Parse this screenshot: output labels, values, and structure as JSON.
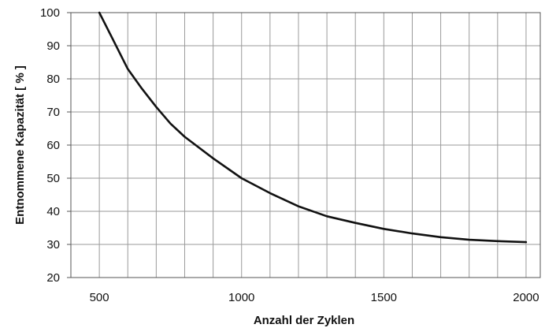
{
  "chart_data": {
    "type": "line",
    "title": "",
    "xlabel": "Anzahl der Zyklen",
    "ylabel": "Entnommene Kapazität [ % ]",
    "xlim": [
      400,
      2050
    ],
    "ylim": [
      20,
      100
    ],
    "x_ticks": [
      500,
      1000,
      1500,
      2000
    ],
    "x_tick_labels": [
      "500",
      "1000",
      "1500",
      "2000"
    ],
    "x_gridlines": [
      500,
      600,
      700,
      800,
      900,
      1000,
      1100,
      1200,
      1300,
      1400,
      1500,
      1600,
      1700,
      1800,
      1900,
      2000
    ],
    "y_ticks": [
      20,
      30,
      40,
      50,
      60,
      70,
      80,
      90,
      100
    ],
    "y_tick_labels": [
      "20",
      "30",
      "40",
      "50",
      "60",
      "70",
      "80",
      "90",
      "100"
    ],
    "grid": true,
    "legend": "none",
    "line_color": "#111111",
    "grid_color": "#9a9a9a",
    "series": [
      {
        "x": [
          500,
          550,
          600,
          650,
          700,
          750,
          800,
          900,
          1000,
          1100,
          1200,
          1300,
          1400,
          1500,
          1600,
          1700,
          1800,
          1900,
          2000
        ],
        "values": [
          100,
          91.5,
          83,
          77,
          71.5,
          66.5,
          62.5,
          56,
          50,
          45.5,
          41.5,
          38.5,
          36.5,
          34.7,
          33.3,
          32.2,
          31.4,
          31,
          30.7
        ]
      }
    ]
  }
}
